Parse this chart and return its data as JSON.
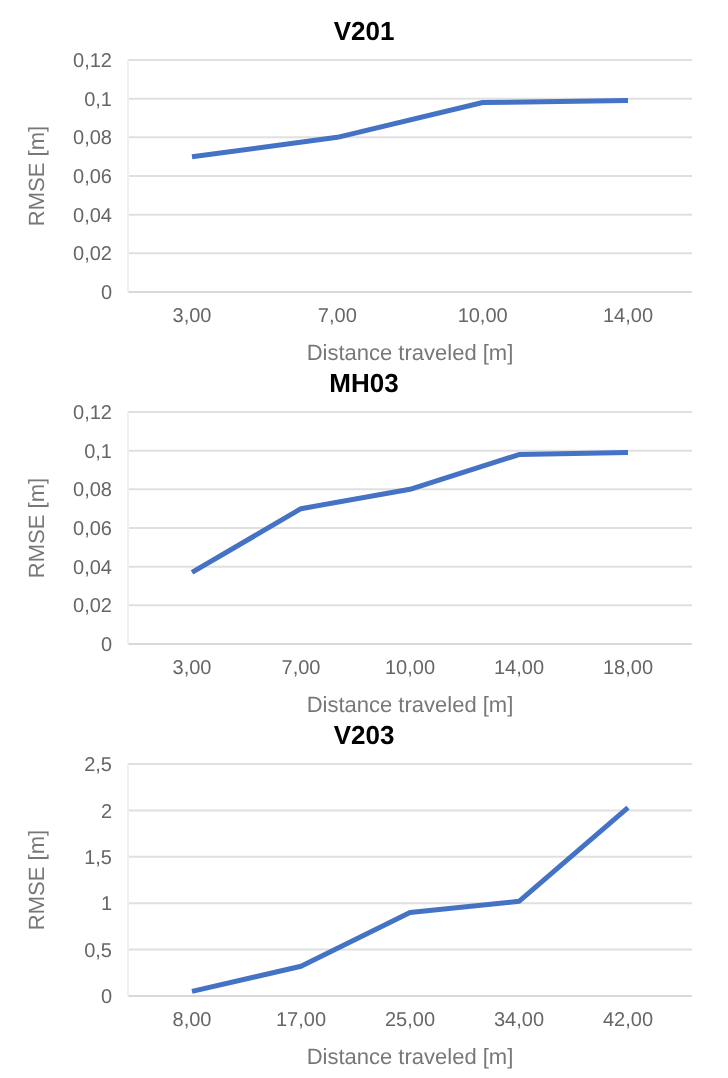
{
  "chart_data": [
    {
      "type": "line",
      "title": "V201",
      "xlabel": "Distance traveled [m]",
      "ylabel": "RMSE [m]",
      "categories": [
        "3,00",
        "7,00",
        "10,00",
        "14,00"
      ],
      "series": [
        {
          "color": "#4472c4",
          "values": [
            0.07,
            0.08,
            0.098,
            0.099
          ]
        }
      ],
      "ylim": [
        0,
        0.12
      ],
      "yticks": [
        {
          "value": 0,
          "label": "0"
        },
        {
          "value": 0.02,
          "label": "0,02"
        },
        {
          "value": 0.04,
          "label": "0,04"
        },
        {
          "value": 0.06,
          "label": "0,06"
        },
        {
          "value": 0.08,
          "label": "0,08"
        },
        {
          "value": 0.1,
          "label": "0,1"
        },
        {
          "value": 0.12,
          "label": "0,12"
        }
      ],
      "grid": "y",
      "marker": "none",
      "line_style": "solid"
    },
    {
      "type": "line",
      "title": "MH03",
      "xlabel": "Distance traveled [m]",
      "ylabel": "RMSE [m]",
      "categories": [
        "3,00",
        "7,00",
        "10,00",
        "14,00",
        "18,00"
      ],
      "series": [
        {
          "color": "#4472c4",
          "values": [
            0.037,
            0.07,
            0.08,
            0.098,
            0.099
          ]
        }
      ],
      "ylim": [
        0,
        0.12
      ],
      "yticks": [
        {
          "value": 0,
          "label": "0"
        },
        {
          "value": 0.02,
          "label": "0,02"
        },
        {
          "value": 0.04,
          "label": "0,04"
        },
        {
          "value": 0.06,
          "label": "0,06"
        },
        {
          "value": 0.08,
          "label": "0,08"
        },
        {
          "value": 0.1,
          "label": "0,1"
        },
        {
          "value": 0.12,
          "label": "0,12"
        }
      ],
      "grid": "y",
      "marker": "none",
      "line_style": "solid"
    },
    {
      "type": "line",
      "title": "V203",
      "xlabel": "Distance traveled [m]",
      "ylabel": "RMSE [m]",
      "categories": [
        "8,00",
        "17,00",
        "25,00",
        "34,00",
        "42,00"
      ],
      "series": [
        {
          "color": "#4472c4",
          "values": [
            0.05,
            0.32,
            0.9,
            1.02,
            2.03
          ]
        }
      ],
      "ylim": [
        0,
        2.5
      ],
      "yticks": [
        {
          "value": 0,
          "label": "0"
        },
        {
          "value": 0.5,
          "label": "0,5"
        },
        {
          "value": 1,
          "label": "1"
        },
        {
          "value": 1.5,
          "label": "1,5"
        },
        {
          "value": 2,
          "label": "2"
        },
        {
          "value": 2.5,
          "label": "2,5"
        }
      ],
      "grid": "y",
      "marker": "none",
      "line_style": "solid"
    }
  ]
}
